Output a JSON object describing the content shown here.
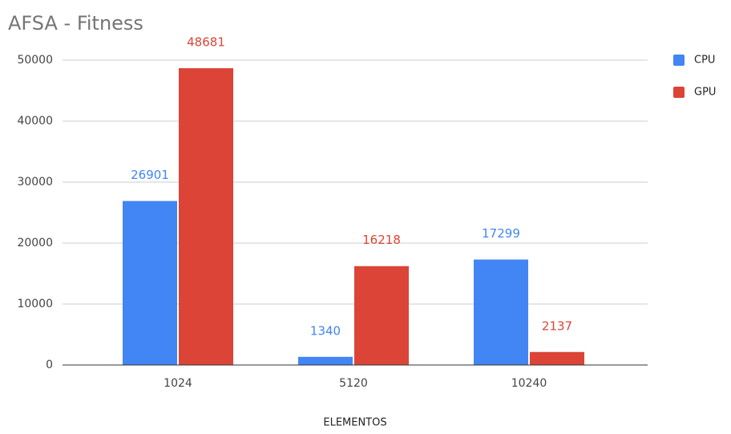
{
  "chart_data": {
    "type": "bar",
    "title": "AFSA - Fitness",
    "x_label": "ELEMENTOS",
    "categories": [
      "1024",
      "5120",
      "10240"
    ],
    "series": [
      {
        "name": "CPU",
        "color": "#4285f4",
        "values": [
          26901,
          1340,
          17299
        ]
      },
      {
        "name": "GPU",
        "color": "#db4437",
        "values": [
          48681,
          16218,
          2137
        ]
      }
    ],
    "ylim": [
      0,
      50000
    ],
    "yticks": [
      0,
      10000,
      20000,
      30000,
      40000,
      50000
    ],
    "grid": true,
    "legend": "right"
  }
}
